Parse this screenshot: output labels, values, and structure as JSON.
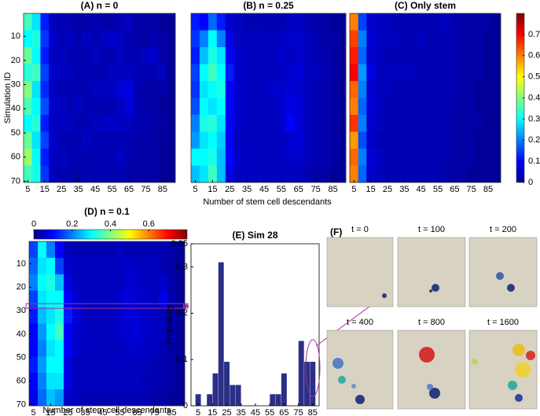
{
  "chart_data": [
    {
      "type": "heatmap",
      "title": "(A) n = 0",
      "ylabel": "Simulation ID",
      "x": [
        5,
        10,
        15,
        20,
        25,
        30,
        35,
        40,
        45,
        50,
        55,
        60,
        65,
        70,
        75,
        80,
        85,
        90
      ],
      "y": [
        4,
        11,
        18,
        25,
        32,
        39,
        46,
        53,
        60,
        67
      ],
      "xlim": [
        2.5,
        92.5
      ],
      "ylim": [
        0.5,
        70.5
      ],
      "xticks": [
        5,
        15,
        25,
        35,
        45,
        55,
        65,
        75,
        85
      ],
      "yticks": [
        10,
        20,
        30,
        40,
        50,
        60,
        70
      ],
      "clim": [
        0,
        0.8
      ],
      "colormap": "jet",
      "values": [
        [
          0.35,
          0.28,
          0.12,
          0.05,
          0.04,
          0.04,
          0.03,
          0.03,
          0.04,
          0.03,
          0.03,
          0.04,
          0.05,
          0.03,
          0.03,
          0.03,
          0.02,
          0.02
        ],
        [
          0.3,
          0.32,
          0.14,
          0.06,
          0.04,
          0.05,
          0.04,
          0.05,
          0.04,
          0.05,
          0.06,
          0.05,
          0.04,
          0.03,
          0.03,
          0.04,
          0.03,
          0.02
        ],
        [
          0.38,
          0.3,
          0.12,
          0.05,
          0.05,
          0.04,
          0.04,
          0.04,
          0.05,
          0.04,
          0.04,
          0.05,
          0.04,
          0.04,
          0.05,
          0.06,
          0.03,
          0.02
        ],
        [
          0.33,
          0.35,
          0.15,
          0.06,
          0.05,
          0.05,
          0.04,
          0.04,
          0.04,
          0.04,
          0.05,
          0.05,
          0.05,
          0.04,
          0.04,
          0.04,
          0.05,
          0.02
        ],
        [
          0.4,
          0.28,
          0.13,
          0.05,
          0.04,
          0.04,
          0.04,
          0.04,
          0.05,
          0.05,
          0.05,
          0.07,
          0.08,
          0.04,
          0.03,
          0.03,
          0.03,
          0.02
        ],
        [
          0.36,
          0.3,
          0.16,
          0.06,
          0.05,
          0.04,
          0.05,
          0.04,
          0.04,
          0.04,
          0.04,
          0.05,
          0.07,
          0.04,
          0.03,
          0.03,
          0.02,
          0.02
        ],
        [
          0.3,
          0.33,
          0.12,
          0.05,
          0.05,
          0.05,
          0.04,
          0.04,
          0.05,
          0.05,
          0.06,
          0.05,
          0.05,
          0.04,
          0.04,
          0.03,
          0.03,
          0.02
        ],
        [
          0.38,
          0.28,
          0.15,
          0.06,
          0.04,
          0.04,
          0.04,
          0.05,
          0.04,
          0.04,
          0.04,
          0.04,
          0.04,
          0.03,
          0.03,
          0.03,
          0.02,
          0.02
        ],
        [
          0.42,
          0.3,
          0.12,
          0.05,
          0.05,
          0.04,
          0.04,
          0.04,
          0.04,
          0.04,
          0.04,
          0.05,
          0.04,
          0.03,
          0.03,
          0.03,
          0.02,
          0.02
        ],
        [
          0.35,
          0.32,
          0.14,
          0.05,
          0.04,
          0.04,
          0.03,
          0.04,
          0.04,
          0.04,
          0.04,
          0.04,
          0.03,
          0.03,
          0.03,
          0.03,
          0.02,
          0.02
        ]
      ]
    },
    {
      "type": "heatmap",
      "title": "(B) n = 0.25",
      "xlabel": "Number of stem cell descendants",
      "x": [
        5,
        10,
        15,
        20,
        25,
        30,
        35,
        40,
        45,
        50,
        55,
        60,
        65,
        70,
        75,
        80,
        85,
        90
      ],
      "y": [
        4,
        11,
        18,
        25,
        32,
        39,
        46,
        53,
        60,
        67
      ],
      "xlim": [
        2.5,
        92.5
      ],
      "ylim": [
        0.5,
        70.5
      ],
      "xticks": [
        5,
        15,
        25,
        35,
        45,
        55,
        65,
        75,
        85
      ],
      "clim": [
        0,
        0.8
      ],
      "colormap": "jet",
      "values": [
        [
          0.12,
          0.1,
          0.18,
          0.12,
          0.06,
          0.05,
          0.04,
          0.04,
          0.04,
          0.04,
          0.04,
          0.05,
          0.05,
          0.04,
          0.03,
          0.03,
          0.02,
          0.02
        ],
        [
          0.14,
          0.2,
          0.3,
          0.2,
          0.08,
          0.05,
          0.05,
          0.05,
          0.05,
          0.05,
          0.05,
          0.06,
          0.06,
          0.05,
          0.04,
          0.03,
          0.03,
          0.02
        ],
        [
          0.12,
          0.25,
          0.32,
          0.28,
          0.1,
          0.06,
          0.05,
          0.05,
          0.05,
          0.05,
          0.06,
          0.05,
          0.06,
          0.05,
          0.04,
          0.04,
          0.03,
          0.02
        ],
        [
          0.15,
          0.3,
          0.35,
          0.3,
          0.12,
          0.06,
          0.05,
          0.05,
          0.05,
          0.05,
          0.05,
          0.06,
          0.07,
          0.05,
          0.05,
          0.04,
          0.03,
          0.02
        ],
        [
          0.14,
          0.28,
          0.3,
          0.32,
          0.1,
          0.06,
          0.05,
          0.05,
          0.05,
          0.06,
          0.06,
          0.07,
          0.06,
          0.05,
          0.04,
          0.04,
          0.03,
          0.02
        ],
        [
          0.16,
          0.3,
          0.28,
          0.3,
          0.1,
          0.06,
          0.05,
          0.05,
          0.05,
          0.05,
          0.06,
          0.08,
          0.07,
          0.05,
          0.04,
          0.04,
          0.03,
          0.02
        ],
        [
          0.2,
          0.32,
          0.33,
          0.28,
          0.1,
          0.06,
          0.05,
          0.05,
          0.05,
          0.05,
          0.06,
          0.1,
          0.07,
          0.05,
          0.04,
          0.04,
          0.03,
          0.02
        ],
        [
          0.22,
          0.28,
          0.3,
          0.26,
          0.09,
          0.05,
          0.05,
          0.05,
          0.05,
          0.05,
          0.05,
          0.06,
          0.07,
          0.05,
          0.04,
          0.04,
          0.03,
          0.02
        ],
        [
          0.3,
          0.3,
          0.32,
          0.25,
          0.1,
          0.06,
          0.05,
          0.05,
          0.05,
          0.05,
          0.05,
          0.06,
          0.06,
          0.05,
          0.04,
          0.04,
          0.03,
          0.02
        ],
        [
          0.25,
          0.28,
          0.35,
          0.25,
          0.08,
          0.05,
          0.05,
          0.05,
          0.05,
          0.05,
          0.05,
          0.05,
          0.05,
          0.04,
          0.03,
          0.03,
          0.02,
          0.02
        ]
      ]
    },
    {
      "type": "heatmap",
      "title": "(C) Only stem",
      "x": [
        5,
        10,
        15,
        20,
        25,
        30,
        35,
        40,
        45,
        50,
        55,
        60,
        65,
        70,
        75,
        80,
        85,
        90
      ],
      "y": [
        4,
        11,
        18,
        25,
        32,
        39,
        46,
        53,
        60,
        67
      ],
      "xlim": [
        2.5,
        92.5
      ],
      "ylim": [
        0.5,
        70.5
      ],
      "xticks": [
        5,
        15,
        25,
        35,
        45,
        55,
        65,
        75,
        85
      ],
      "clim": [
        0,
        0.8
      ],
      "colormap": "jet",
      "colorbar": "right",
      "cticks": [
        0,
        0.1,
        0.2,
        0.3,
        0.4,
        0.5,
        0.6,
        0.7
      ],
      "values": [
        [
          0.6,
          0.15,
          0.06,
          0.05,
          0.05,
          0.04,
          0.04,
          0.04,
          0.04,
          0.04,
          0.04,
          0.05,
          0.04,
          0.03,
          0.03,
          0.03,
          0.03,
          0.02
        ],
        [
          0.65,
          0.2,
          0.07,
          0.05,
          0.05,
          0.05,
          0.04,
          0.04,
          0.05,
          0.04,
          0.04,
          0.04,
          0.04,
          0.03,
          0.03,
          0.03,
          0.02,
          0.02
        ],
        [
          0.68,
          0.18,
          0.06,
          0.05,
          0.04,
          0.04,
          0.04,
          0.04,
          0.04,
          0.04,
          0.04,
          0.04,
          0.04,
          0.03,
          0.03,
          0.03,
          0.02,
          0.02
        ],
        [
          0.7,
          0.22,
          0.08,
          0.05,
          0.05,
          0.05,
          0.05,
          0.05,
          0.04,
          0.04,
          0.04,
          0.04,
          0.04,
          0.03,
          0.03,
          0.03,
          0.02,
          0.02
        ],
        [
          0.62,
          0.2,
          0.06,
          0.05,
          0.05,
          0.04,
          0.04,
          0.04,
          0.04,
          0.04,
          0.04,
          0.04,
          0.04,
          0.03,
          0.03,
          0.02,
          0.02,
          0.02
        ],
        [
          0.6,
          0.18,
          0.07,
          0.05,
          0.04,
          0.04,
          0.04,
          0.04,
          0.04,
          0.04,
          0.04,
          0.04,
          0.03,
          0.03,
          0.03,
          0.02,
          0.02,
          0.02
        ],
        [
          0.66,
          0.2,
          0.06,
          0.05,
          0.04,
          0.04,
          0.04,
          0.04,
          0.04,
          0.04,
          0.04,
          0.04,
          0.03,
          0.03,
          0.03,
          0.03,
          0.02,
          0.02
        ],
        [
          0.58,
          0.16,
          0.06,
          0.04,
          0.04,
          0.04,
          0.04,
          0.04,
          0.04,
          0.04,
          0.04,
          0.04,
          0.03,
          0.03,
          0.03,
          0.02,
          0.02,
          0.02
        ],
        [
          0.62,
          0.2,
          0.07,
          0.05,
          0.04,
          0.04,
          0.04,
          0.04,
          0.04,
          0.04,
          0.04,
          0.04,
          0.03,
          0.03,
          0.03,
          0.02,
          0.02,
          0.02
        ],
        [
          0.6,
          0.18,
          0.06,
          0.05,
          0.04,
          0.04,
          0.04,
          0.04,
          0.04,
          0.04,
          0.04,
          0.03,
          0.03,
          0.03,
          0.02,
          0.02,
          0.02,
          0.02
        ]
      ]
    },
    {
      "type": "heatmap",
      "title": "(D) n = 0.1",
      "xlabel": "Number of stem cell descendants",
      "x": [
        5,
        10,
        15,
        20,
        25,
        30,
        35,
        40,
        45,
        50,
        55,
        60,
        65,
        70,
        75,
        80,
        85,
        90
      ],
      "y": [
        4,
        11,
        18,
        25,
        32,
        39,
        46,
        53,
        60,
        67
      ],
      "xlim": [
        2.5,
        92.5
      ],
      "ylim": [
        0.5,
        70.5
      ],
      "xticks": [
        5,
        15,
        25,
        35,
        45,
        55,
        65,
        75,
        85
      ],
      "yticks": [
        10,
        20,
        30,
        40,
        50,
        60,
        70
      ],
      "clim": [
        0,
        0.8
      ],
      "colormap": "jet",
      "colorbar": "top",
      "cticks": [
        0,
        0.2,
        0.4,
        0.6
      ],
      "highlight": 28,
      "values": [
        [
          0.15,
          0.3,
          0.2,
          0.1,
          0.05,
          0.04,
          0.04,
          0.04,
          0.04,
          0.04,
          0.05,
          0.04,
          0.04,
          0.04,
          0.04,
          0.04,
          0.03,
          0.02
        ],
        [
          0.18,
          0.28,
          0.3,
          0.15,
          0.06,
          0.05,
          0.05,
          0.05,
          0.05,
          0.05,
          0.05,
          0.06,
          0.05,
          0.05,
          0.05,
          0.04,
          0.03,
          0.02
        ],
        [
          0.2,
          0.3,
          0.32,
          0.25,
          0.08,
          0.05,
          0.05,
          0.05,
          0.05,
          0.05,
          0.05,
          0.06,
          0.06,
          0.05,
          0.05,
          0.06,
          0.03,
          0.02
        ],
        [
          0.15,
          0.28,
          0.3,
          0.3,
          0.1,
          0.06,
          0.05,
          0.05,
          0.05,
          0.05,
          0.06,
          0.07,
          0.06,
          0.06,
          0.05,
          0.08,
          0.04,
          0.02
        ],
        [
          0.12,
          0.25,
          0.28,
          0.32,
          0.12,
          0.07,
          0.05,
          0.05,
          0.05,
          0.05,
          0.06,
          0.07,
          0.07,
          0.06,
          0.05,
          0.05,
          0.04,
          0.02
        ],
        [
          0.1,
          0.22,
          0.3,
          0.35,
          0.1,
          0.06,
          0.05,
          0.05,
          0.05,
          0.05,
          0.06,
          0.06,
          0.07,
          0.06,
          0.05,
          0.05,
          0.04,
          0.02
        ],
        [
          0.1,
          0.2,
          0.28,
          0.3,
          0.1,
          0.06,
          0.05,
          0.05,
          0.05,
          0.05,
          0.05,
          0.06,
          0.06,
          0.05,
          0.05,
          0.04,
          0.03,
          0.02
        ],
        [
          0.12,
          0.22,
          0.3,
          0.3,
          0.08,
          0.05,
          0.05,
          0.05,
          0.05,
          0.05,
          0.05,
          0.05,
          0.05,
          0.05,
          0.04,
          0.04,
          0.03,
          0.02
        ],
        [
          0.1,
          0.2,
          0.28,
          0.28,
          0.08,
          0.05,
          0.05,
          0.05,
          0.05,
          0.05,
          0.05,
          0.05,
          0.05,
          0.04,
          0.04,
          0.04,
          0.03,
          0.02
        ],
        [
          0.08,
          0.18,
          0.25,
          0.22,
          0.06,
          0.05,
          0.04,
          0.04,
          0.04,
          0.04,
          0.04,
          0.04,
          0.04,
          0.04,
          0.03,
          0.03,
          0.02,
          0.02
        ]
      ]
    },
    {
      "type": "bar",
      "title": "(E) Sim 28",
      "ylabel": "Probability",
      "color": "#2b2f86",
      "x": [
        5,
        13,
        17,
        21,
        25,
        29,
        33,
        57,
        61,
        65,
        77,
        81,
        85
      ],
      "values": [
        0.025,
        0.025,
        0.07,
        0.31,
        0.095,
        0.045,
        0.045,
        0.025,
        0.025,
        0.07,
        0.14,
        0.095,
        0.095
      ],
      "xlim": [
        0,
        89.5
      ],
      "ylim": [
        0,
        0.35
      ],
      "xticks": [
        5,
        15,
        25,
        35,
        45,
        55,
        65,
        75,
        85
      ],
      "yticks": [
        0,
        0.1,
        0.2,
        0.3,
        0.35
      ]
    }
  ],
  "panel_f": {
    "label": "(F)",
    "frames": [
      "t = 0",
      "t = 100",
      "t = 200",
      "t = 400",
      "t = 800",
      "t = 1600"
    ]
  }
}
